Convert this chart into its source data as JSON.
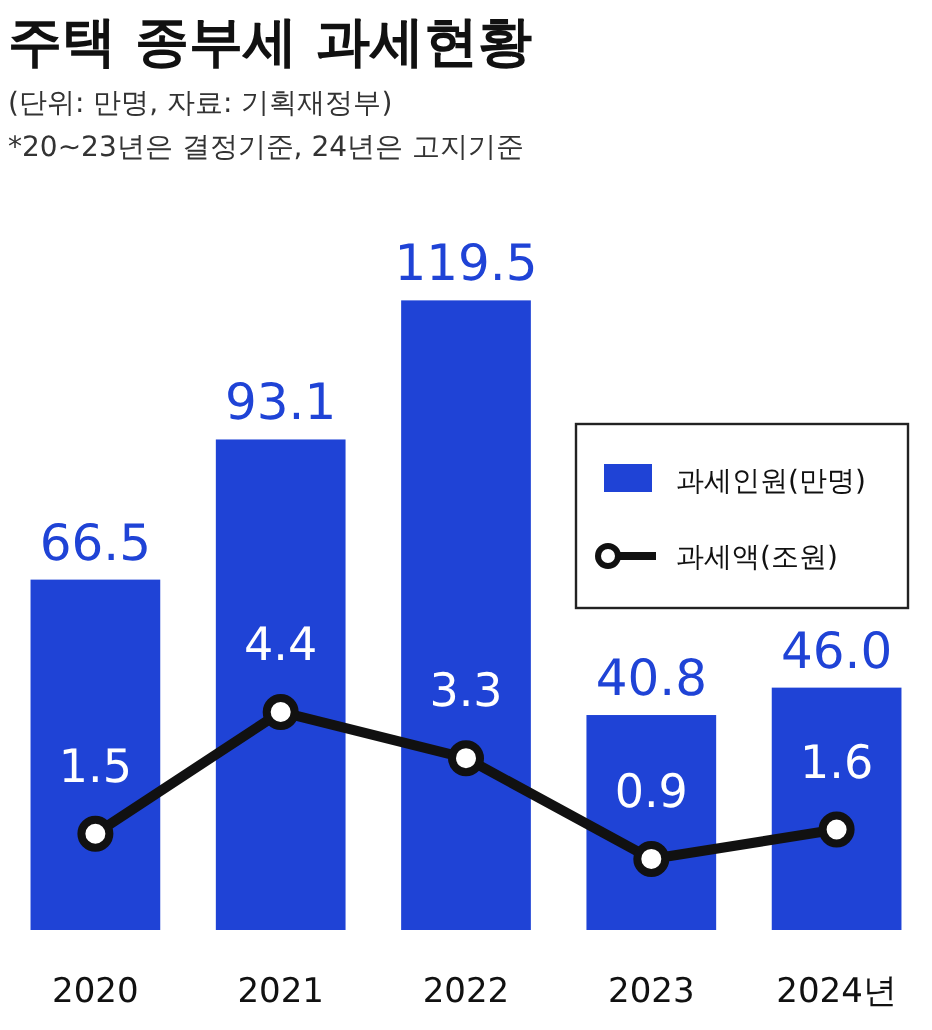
{
  "chart_data": {
    "type": "bar",
    "title": "주택 종부세 과세현황",
    "subtitle": "(단위: 만명, 자료: 기획재정부)",
    "annotations": [
      "*20~23년은 결정기준, 24년은 고지기준"
    ],
    "categories": [
      "2020",
      "2021",
      "2022",
      "2023",
      "2024년"
    ],
    "series": [
      {
        "name": "과세인원(만명)",
        "color": "#1f43d6",
        "values": [
          66.5,
          93.1,
          119.5,
          40.8,
          46.0
        ],
        "value_labels": [
          "66.5",
          "93.1",
          "119.5",
          "40.8",
          "46.0"
        ]
      },
      {
        "name": "과세액(조원)",
        "type": "line",
        "axis": "y2",
        "color": "#111111",
        "values": [
          1.5,
          4.4,
          3.3,
          0.9,
          1.6
        ]
      }
    ],
    "tick_labels": "x",
    "data_labels": true,
    "legend": "top right",
    "marker": "circle",
    "line_style": "solid"
  }
}
